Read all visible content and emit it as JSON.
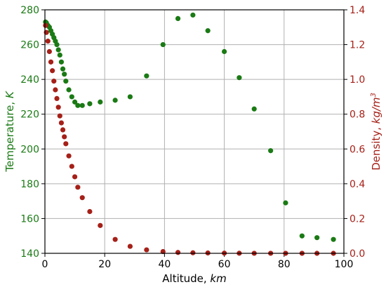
{
  "chart_data": {
    "type": "scatter",
    "xlabel": "Altitude, ",
    "xlabel_unit": "km",
    "ylabel_left": "Temperature, ",
    "ylabel_left_unit": "K",
    "ylabel_right": "Density, ",
    "ylabel_right_unit": "kg/m",
    "ylabel_right_unit_exp": "3",
    "xlim": [
      0,
      100
    ],
    "ylim_left": [
      140,
      280
    ],
    "ylim_right": [
      0.0,
      1.4
    ],
    "x_ticks": [
      "0",
      "20",
      "40",
      "60",
      "80",
      "100"
    ],
    "x_tick_values": [
      0,
      20,
      40,
      60,
      80,
      100
    ],
    "y_left_ticks": [
      "140",
      "160",
      "180",
      "200",
      "220",
      "240",
      "260",
      "280"
    ],
    "y_left_tick_values": [
      140,
      160,
      180,
      200,
      220,
      240,
      260,
      280
    ],
    "y_right_ticks": [
      "0.0",
      "0.2",
      "0.4",
      "0.6",
      "0.8",
      "1.0",
      "1.2",
      "1.4"
    ],
    "y_right_tick_values": [
      0.0,
      0.2,
      0.4,
      0.6,
      0.8,
      1.0,
      1.2,
      1.4
    ],
    "grid": true,
    "colors": {
      "temperature": "#1a7a14",
      "density": "#a52018",
      "left_axis_text": "#1a7a14",
      "right_axis_text": "#a52018",
      "grid": "#b0b0b0"
    },
    "series": [
      {
        "axis": "left",
        "x": [
          0.2,
          0.5,
          1.0,
          1.5,
          2.0,
          2.5,
          3.0,
          3.5,
          4.0,
          4.5,
          5.0,
          5.5,
          6.0,
          6.5,
          7.0,
          8.0,
          9.0,
          10.0,
          11.0,
          12.5,
          15.0,
          18.5,
          23.5,
          28.5,
          34.0,
          39.5,
          44.5,
          49.5,
          54.5,
          60.0,
          65.0,
          70.0,
          75.5,
          80.5,
          86.0,
          91.0,
          96.5
        ],
        "y": [
          273,
          272.5,
          271,
          270,
          268,
          266,
          264,
          262,
          260,
          257,
          254,
          250,
          246,
          243,
          239,
          234,
          230,
          227,
          225,
          225,
          226,
          227,
          228,
          230,
          242,
          260,
          275,
          277,
          268,
          256,
          241,
          223,
          199,
          169,
          150,
          149,
          148
        ]
      },
      {
        "axis": "right",
        "x": [
          0.2,
          0.5,
          1.0,
          1.5,
          2.0,
          2.5,
          3.0,
          3.5,
          4.0,
          4.5,
          5.0,
          5.5,
          6.0,
          6.5,
          7.0,
          8.0,
          9.0,
          10.0,
          11.0,
          12.5,
          15.0,
          18.5,
          23.5,
          28.5,
          34.0,
          39.5,
          44.5,
          49.5,
          54.5,
          60.0,
          65.0,
          70.0,
          75.5,
          80.5,
          86.0,
          91.0,
          96.5
        ],
        "y": [
          1.31,
          1.27,
          1.22,
          1.16,
          1.1,
          1.05,
          0.99,
          0.94,
          0.89,
          0.84,
          0.79,
          0.75,
          0.71,
          0.67,
          0.63,
          0.56,
          0.5,
          0.44,
          0.38,
          0.32,
          0.24,
          0.16,
          0.08,
          0.04,
          0.02,
          0.01,
          0.005,
          0.003,
          0.002,
          0.001,
          0.0005,
          0.0003,
          0.0002,
          0.0001,
          0.0001,
          0.0,
          0.0
        ]
      }
    ]
  }
}
